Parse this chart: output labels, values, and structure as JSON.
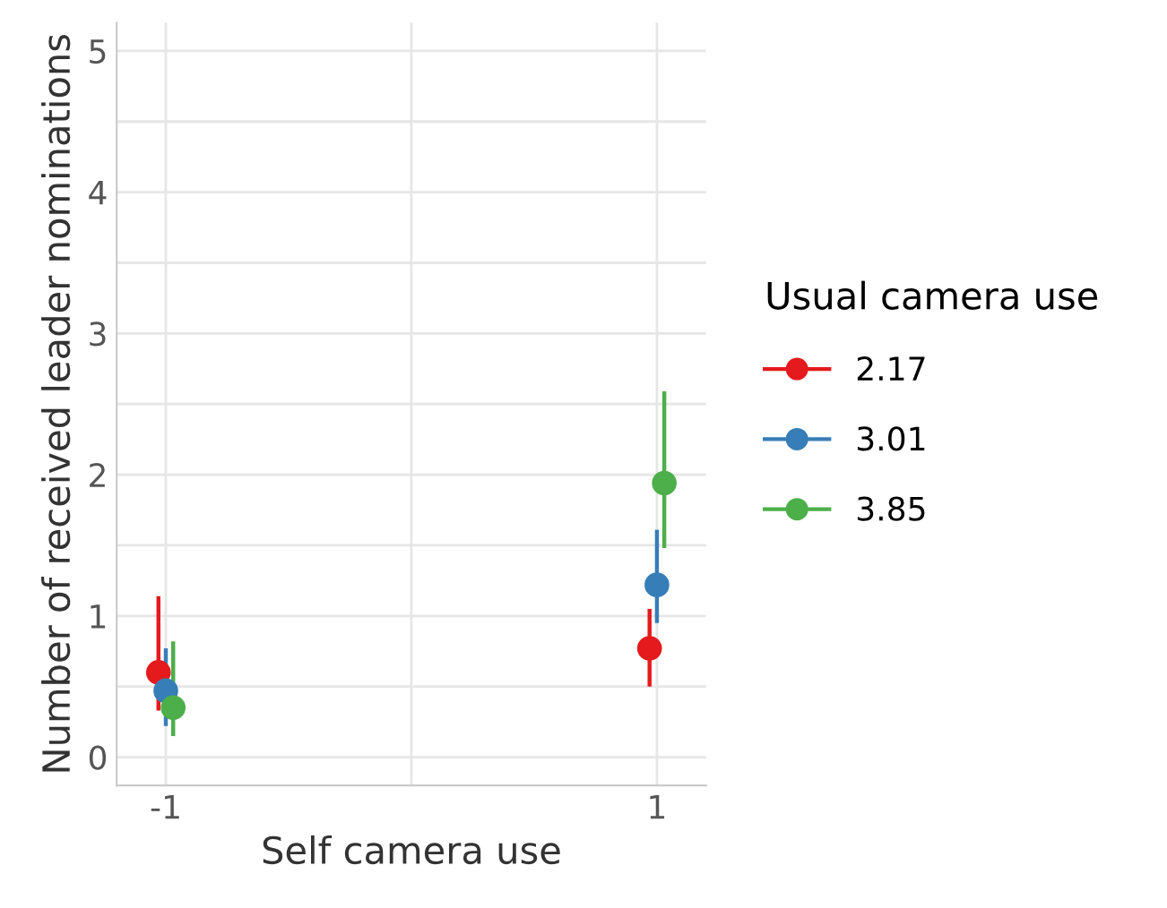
{
  "chart_data": {
    "type": "scatter",
    "xlabel": "Self camera use",
    "ylabel": "Number of received leader nominations",
    "legend_title": "Usual camera use",
    "x": [
      -1,
      1
    ],
    "series": [
      {
        "name": "2.17",
        "color": "#e41a1c",
        "x": [
          -1.03,
          0.97
        ],
        "values": [
          0.6,
          0.77
        ],
        "errors": [
          [
            0.33,
            1.14
          ],
          [
            0.5,
            1.05
          ]
        ]
      },
      {
        "name": "3.01",
        "color": "#377eb8",
        "values": [
          0.47,
          1.22
        ],
        "errors": [
          [
            0.22,
            0.77
          ],
          [
            0.95,
            1.61
          ]
        ]
      },
      {
        "name": "3.85",
        "color": "#4daf4a",
        "x": [
          -0.97,
          1.03
        ],
        "values": [
          0.35,
          1.94
        ],
        "errors": [
          [
            0.15,
            0.82
          ],
          [
            1.48,
            2.59
          ]
        ]
      }
    ],
    "xlim": [
      -1.2,
      1.2
    ],
    "xticks": [
      -1,
      {
        "value": 0,
        "label": null
      },
      1
    ],
    "ylim": [
      -0.2,
      5.2
    ],
    "yticks": [
      0,
      {
        "value": 0.5,
        "label": null
      },
      1,
      {
        "value": 1.5,
        "label": null
      },
      2,
      {
        "value": 2.5,
        "label": null
      },
      3,
      {
        "value": 3.5,
        "label": null
      },
      4,
      {
        "value": 4.5,
        "label": null
      },
      5
    ],
    "grid": true,
    "legend": "right",
    "marker": "circle",
    "line_style": "solid"
  }
}
